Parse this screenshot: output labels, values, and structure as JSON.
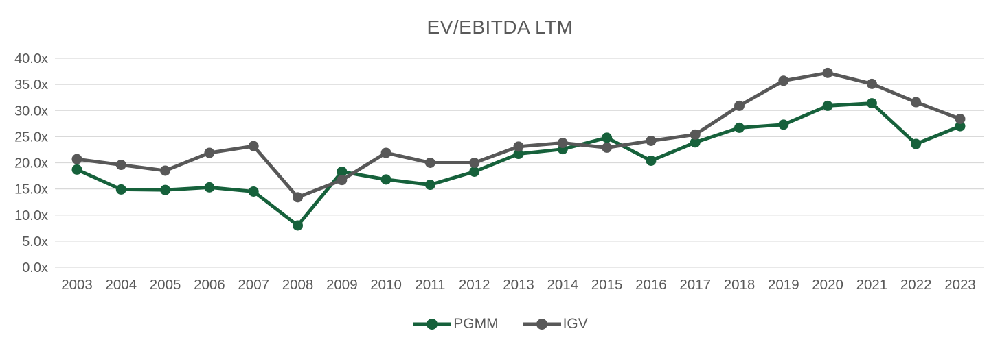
{
  "chart_data": {
    "type": "line",
    "title": "EV/EBITDA LTM",
    "categories": [
      "2003",
      "2004",
      "2005",
      "2006",
      "2007",
      "2008",
      "2009",
      "2010",
      "2011",
      "2012",
      "2013",
      "2014",
      "2015",
      "2016",
      "2017",
      "2018",
      "2019",
      "2020",
      "2021",
      "2022",
      "2023"
    ],
    "series": [
      {
        "name": "PGMM",
        "color": "#16613B",
        "values": [
          18.7,
          14.9,
          14.8,
          15.3,
          14.5,
          8.0,
          18.3,
          16.8,
          15.8,
          18.3,
          21.7,
          22.6,
          24.8,
          20.4,
          23.9,
          26.7,
          27.3,
          30.9,
          31.4,
          23.6,
          27.0
        ]
      },
      {
        "name": "IGV",
        "color": "#585858",
        "values": [
          20.7,
          19.6,
          18.5,
          21.9,
          23.2,
          13.4,
          16.7,
          21.9,
          20.0,
          20.0,
          23.1,
          23.8,
          22.9,
          24.2,
          25.4,
          30.9,
          35.7,
          37.2,
          35.1,
          31.6,
          28.4
        ]
      }
    ],
    "ylabel": "",
    "xlabel": "",
    "ylim": [
      0,
      40
    ],
    "ytick_step": 5,
    "ytick_decimals": 1,
    "ytick_suffix": "x",
    "ytick_labels": [
      "0.0x",
      "5.0x",
      "10.0x",
      "15.0x",
      "20.0x",
      "25.0x",
      "30.0x",
      "35.0x",
      "40.0x"
    ],
    "grid": "horizontal",
    "legend_position": "bottom"
  },
  "colors": {
    "grid_line": "#D9D9D9",
    "tick_text": "#595959",
    "title_text": "#595959",
    "background": "#FFFFFF"
  }
}
